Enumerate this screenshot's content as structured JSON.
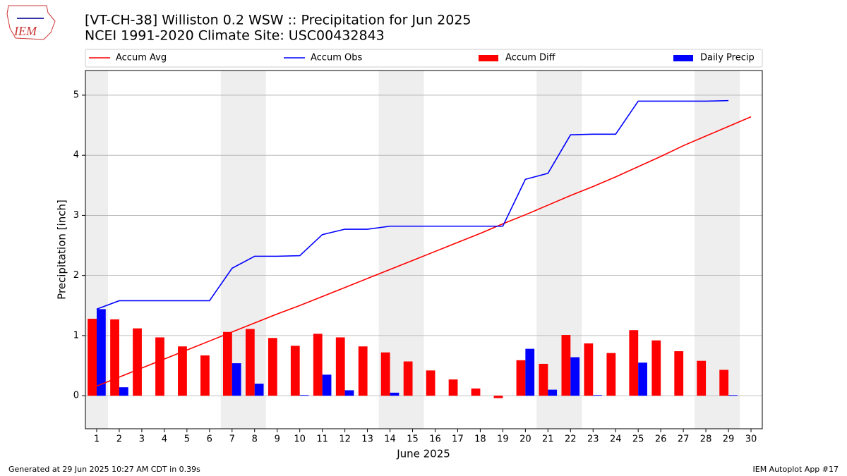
{
  "logo_text": "IEM",
  "chart_data": {
    "type": "combo",
    "title": "[VT-CH-38] Williston 0.2 WSW :: Precipitation for Jun 2025",
    "subtitle": "NCEI 1991-2020 Climate Site: USC00432843",
    "x_label": "June 2025",
    "y_label": "Precipitation [inch]",
    "x": [
      1,
      2,
      3,
      4,
      5,
      6,
      7,
      8,
      9,
      10,
      11,
      12,
      13,
      14,
      15,
      16,
      17,
      18,
      19,
      20,
      21,
      22,
      23,
      24,
      25,
      26,
      27,
      28,
      29,
      30
    ],
    "series": [
      {
        "name": "Accum Avg",
        "type": "line",
        "color": "#ff0000",
        "values": [
          0.16,
          0.31,
          0.46,
          0.61,
          0.76,
          0.91,
          1.06,
          1.21,
          1.36,
          1.5,
          1.65,
          1.8,
          1.95,
          2.1,
          2.25,
          2.4,
          2.55,
          2.7,
          2.86,
          3.01,
          3.17,
          3.33,
          3.48,
          3.64,
          3.81,
          3.98,
          4.16,
          4.32,
          4.48,
          4.64
        ]
      },
      {
        "name": "Accum Obs",
        "type": "line",
        "color": "#0000ff",
        "values": [
          1.44,
          1.58,
          1.58,
          1.58,
          1.58,
          1.58,
          2.12,
          2.32,
          2.32,
          2.33,
          2.68,
          2.77,
          2.77,
          2.82,
          2.82,
          2.82,
          2.82,
          2.82,
          2.82,
          3.6,
          3.7,
          4.34,
          4.35,
          4.35,
          4.9,
          4.9,
          4.9,
          4.9,
          4.91,
          null
        ]
      },
      {
        "name": "Accum Diff",
        "type": "bar",
        "offset": -0.4,
        "color": "#ff0000",
        "values": [
          1.28,
          1.27,
          1.12,
          0.97,
          0.82,
          0.67,
          1.06,
          1.11,
          0.96,
          0.83,
          1.03,
          0.97,
          0.82,
          0.72,
          0.57,
          0.42,
          0.27,
          0.12,
          -0.04,
          0.59,
          0.53,
          1.01,
          0.87,
          0.71,
          1.09,
          0.92,
          0.74,
          0.58,
          0.43,
          null
        ]
      },
      {
        "name": "Daily Precip",
        "type": "bar",
        "offset": 0,
        "color": "#0000ff",
        "values": [
          1.44,
          0.14,
          0,
          0,
          0,
          0,
          0.54,
          0.2,
          0,
          0.01,
          0.35,
          0.09,
          0,
          0.05,
          0,
          0,
          0,
          0,
          0,
          0.78,
          0.1,
          0.64,
          0.01,
          0,
          0.55,
          0,
          0,
          0,
          0.01,
          null
        ]
      }
    ],
    "bar_width": 0.4,
    "shaded_spans": [
      [
        0.5,
        1.5
      ],
      [
        6.5,
        8.5
      ],
      [
        13.5,
        15.5
      ],
      [
        20.5,
        22.5
      ],
      [
        27.5,
        29.5
      ]
    ],
    "shade_color": "#eeeeee",
    "xlim": [
      0.5,
      30.5
    ],
    "xticks": [
      1,
      2,
      3,
      4,
      5,
      6,
      7,
      8,
      9,
      10,
      11,
      12,
      13,
      14,
      15,
      16,
      17,
      18,
      19,
      20,
      21,
      22,
      23,
      24,
      25,
      26,
      27,
      28,
      29,
      30
    ],
    "ylim": [
      -0.55,
      5.41
    ],
    "yticks": [
      0,
      1,
      2,
      3,
      4,
      5
    ],
    "grid": true,
    "footer_left": "Generated at 29 Jun 2025 10:27 AM CDT in 0.39s",
    "footer_right": "IEM Autoplot App #17"
  }
}
